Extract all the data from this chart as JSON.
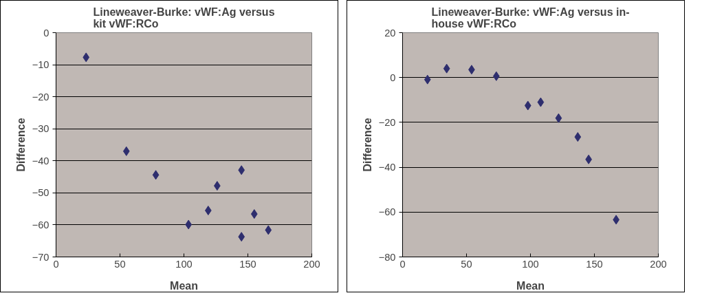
{
  "chart_data": [
    {
      "type": "scatter",
      "title": "Lineweaver-Burke: vWF:Ag versus\nkit vWF:RCo",
      "xlabel": "Mean",
      "ylabel": "Difference",
      "marker": "diamond",
      "grid": "y",
      "series": [
        {
          "color": "#2e2e6e",
          "x": [
            23.5,
            55,
            78,
            103.6,
            119,
            126,
            145,
            145,
            155,
            166
          ],
          "values": [
            -7.7,
            -37,
            -44.4,
            -59.9,
            -55.5,
            -47.8,
            -42.9,
            -63.7,
            -56.6,
            -61.6
          ]
        }
      ],
      "xlim": [
        0,
        200
      ],
      "xticks": [
        0,
        50,
        100,
        150,
        200
      ],
      "ylim": [
        -70,
        0
      ],
      "yticks": [
        -70,
        -60,
        -50,
        -40,
        -30,
        -20,
        -10,
        0
      ]
    },
    {
      "type": "scatter",
      "title": "Lineweaver-Burke: vWF:Ag versus in-\nhouse vWF:RCo",
      "xlabel": "Mean",
      "ylabel": "Difference",
      "marker": "diamond",
      "grid": "y",
      "series": [
        {
          "color": "#2e2e6e",
          "x": [
            19.5,
            34.5,
            54,
            73.3,
            98,
            108,
            122,
            137,
            145.5,
            167
          ],
          "values": [
            -0.9,
            4.0,
            3.5,
            0.6,
            -12.5,
            -11,
            -18.1,
            -26.5,
            -36.5,
            -63.4
          ]
        }
      ],
      "xlim": [
        0,
        200
      ],
      "xticks": [
        0,
        50,
        100,
        150,
        200
      ],
      "ylim": [
        -80,
        20
      ],
      "yticks": [
        -80,
        -60,
        -40,
        -20,
        0,
        20
      ]
    }
  ]
}
